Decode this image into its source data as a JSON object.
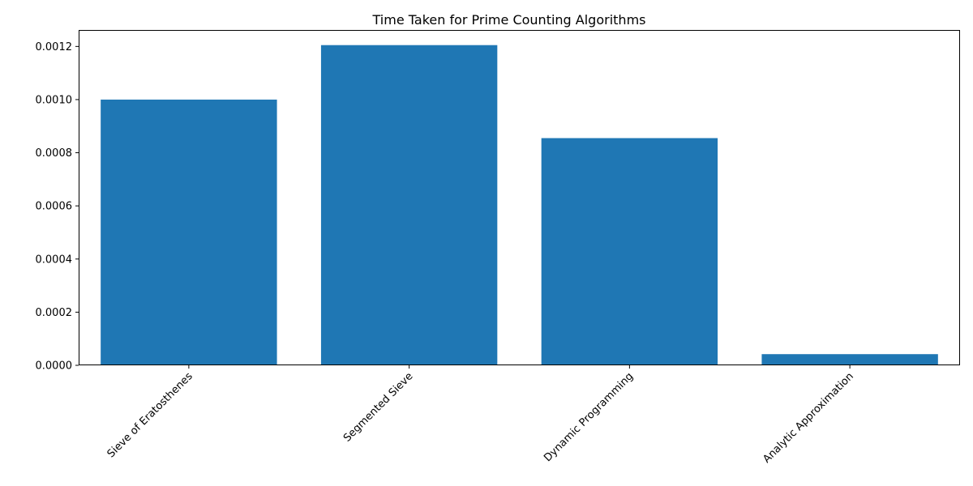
{
  "chart_data": {
    "type": "bar",
    "title": "Time Taken for Prime Counting Algorithms",
    "xlabel": "",
    "ylabel": "",
    "categories": [
      "Sieve of Eratosthenes",
      "Segmented Sieve",
      "Dynamic Programming",
      "Analytic Approximation"
    ],
    "values": [
      0.001,
      0.001205,
      0.000855,
      4.2e-05
    ],
    "ylim": [
      0,
      0.001262
    ],
    "yticks": [
      0.0,
      0.0002,
      0.0004,
      0.0006,
      0.0008,
      0.001,
      0.0012
    ],
    "ytick_labels": [
      "0.0000",
      "0.0002",
      "0.0004",
      "0.0006",
      "0.0008",
      "0.0010",
      "0.0012"
    ],
    "bar_color": "#1f77b4",
    "grid": false,
    "legend": false
  }
}
